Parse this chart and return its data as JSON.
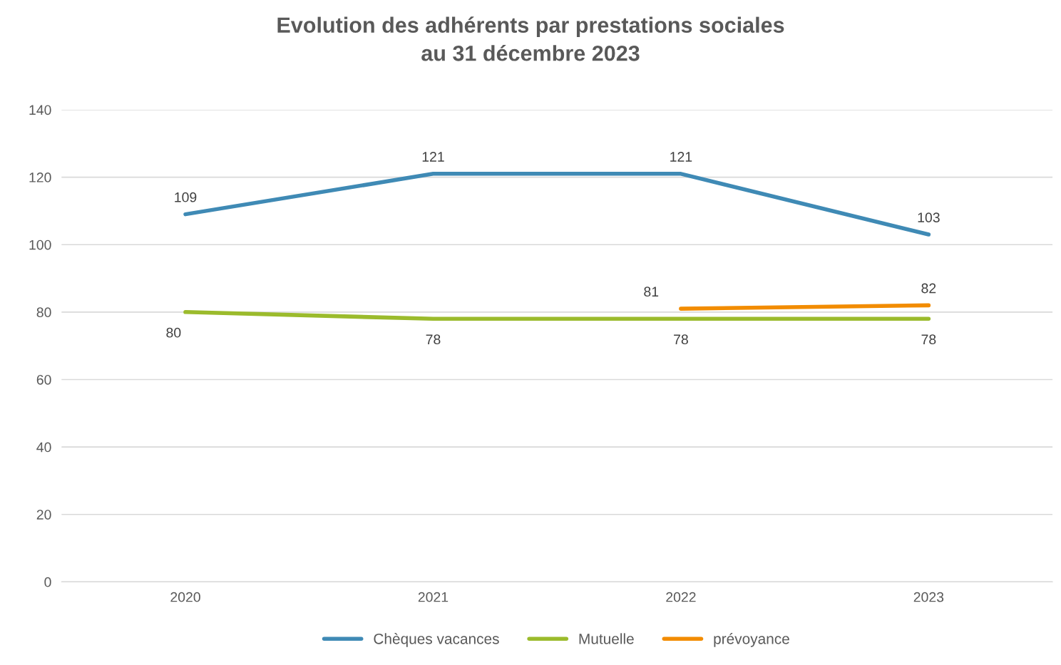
{
  "chart_data": {
    "type": "line",
    "title": "Evolution des adhérents par prestations sociales\nau 31 décembre 2023",
    "categories": [
      "2020",
      "2021",
      "2022",
      "2023"
    ],
    "series": [
      {
        "name": "Chèques vacances",
        "color": "#3f8ab5",
        "values": [
          109,
          121,
          121,
          103
        ]
      },
      {
        "name": "Mutuelle",
        "color": "#9bbb2c",
        "values": [
          80,
          78,
          78,
          78
        ]
      },
      {
        "name": "prévoyance",
        "color": "#f28c00",
        "values": [
          null,
          null,
          81,
          82
        ]
      }
    ],
    "ylim": [
      0,
      140
    ],
    "yticks": [
      0,
      20,
      40,
      60,
      80,
      100,
      120,
      140
    ],
    "grid": "y",
    "legend": "bottom",
    "data_labels": true,
    "marker": "none",
    "line_style": "solid"
  }
}
